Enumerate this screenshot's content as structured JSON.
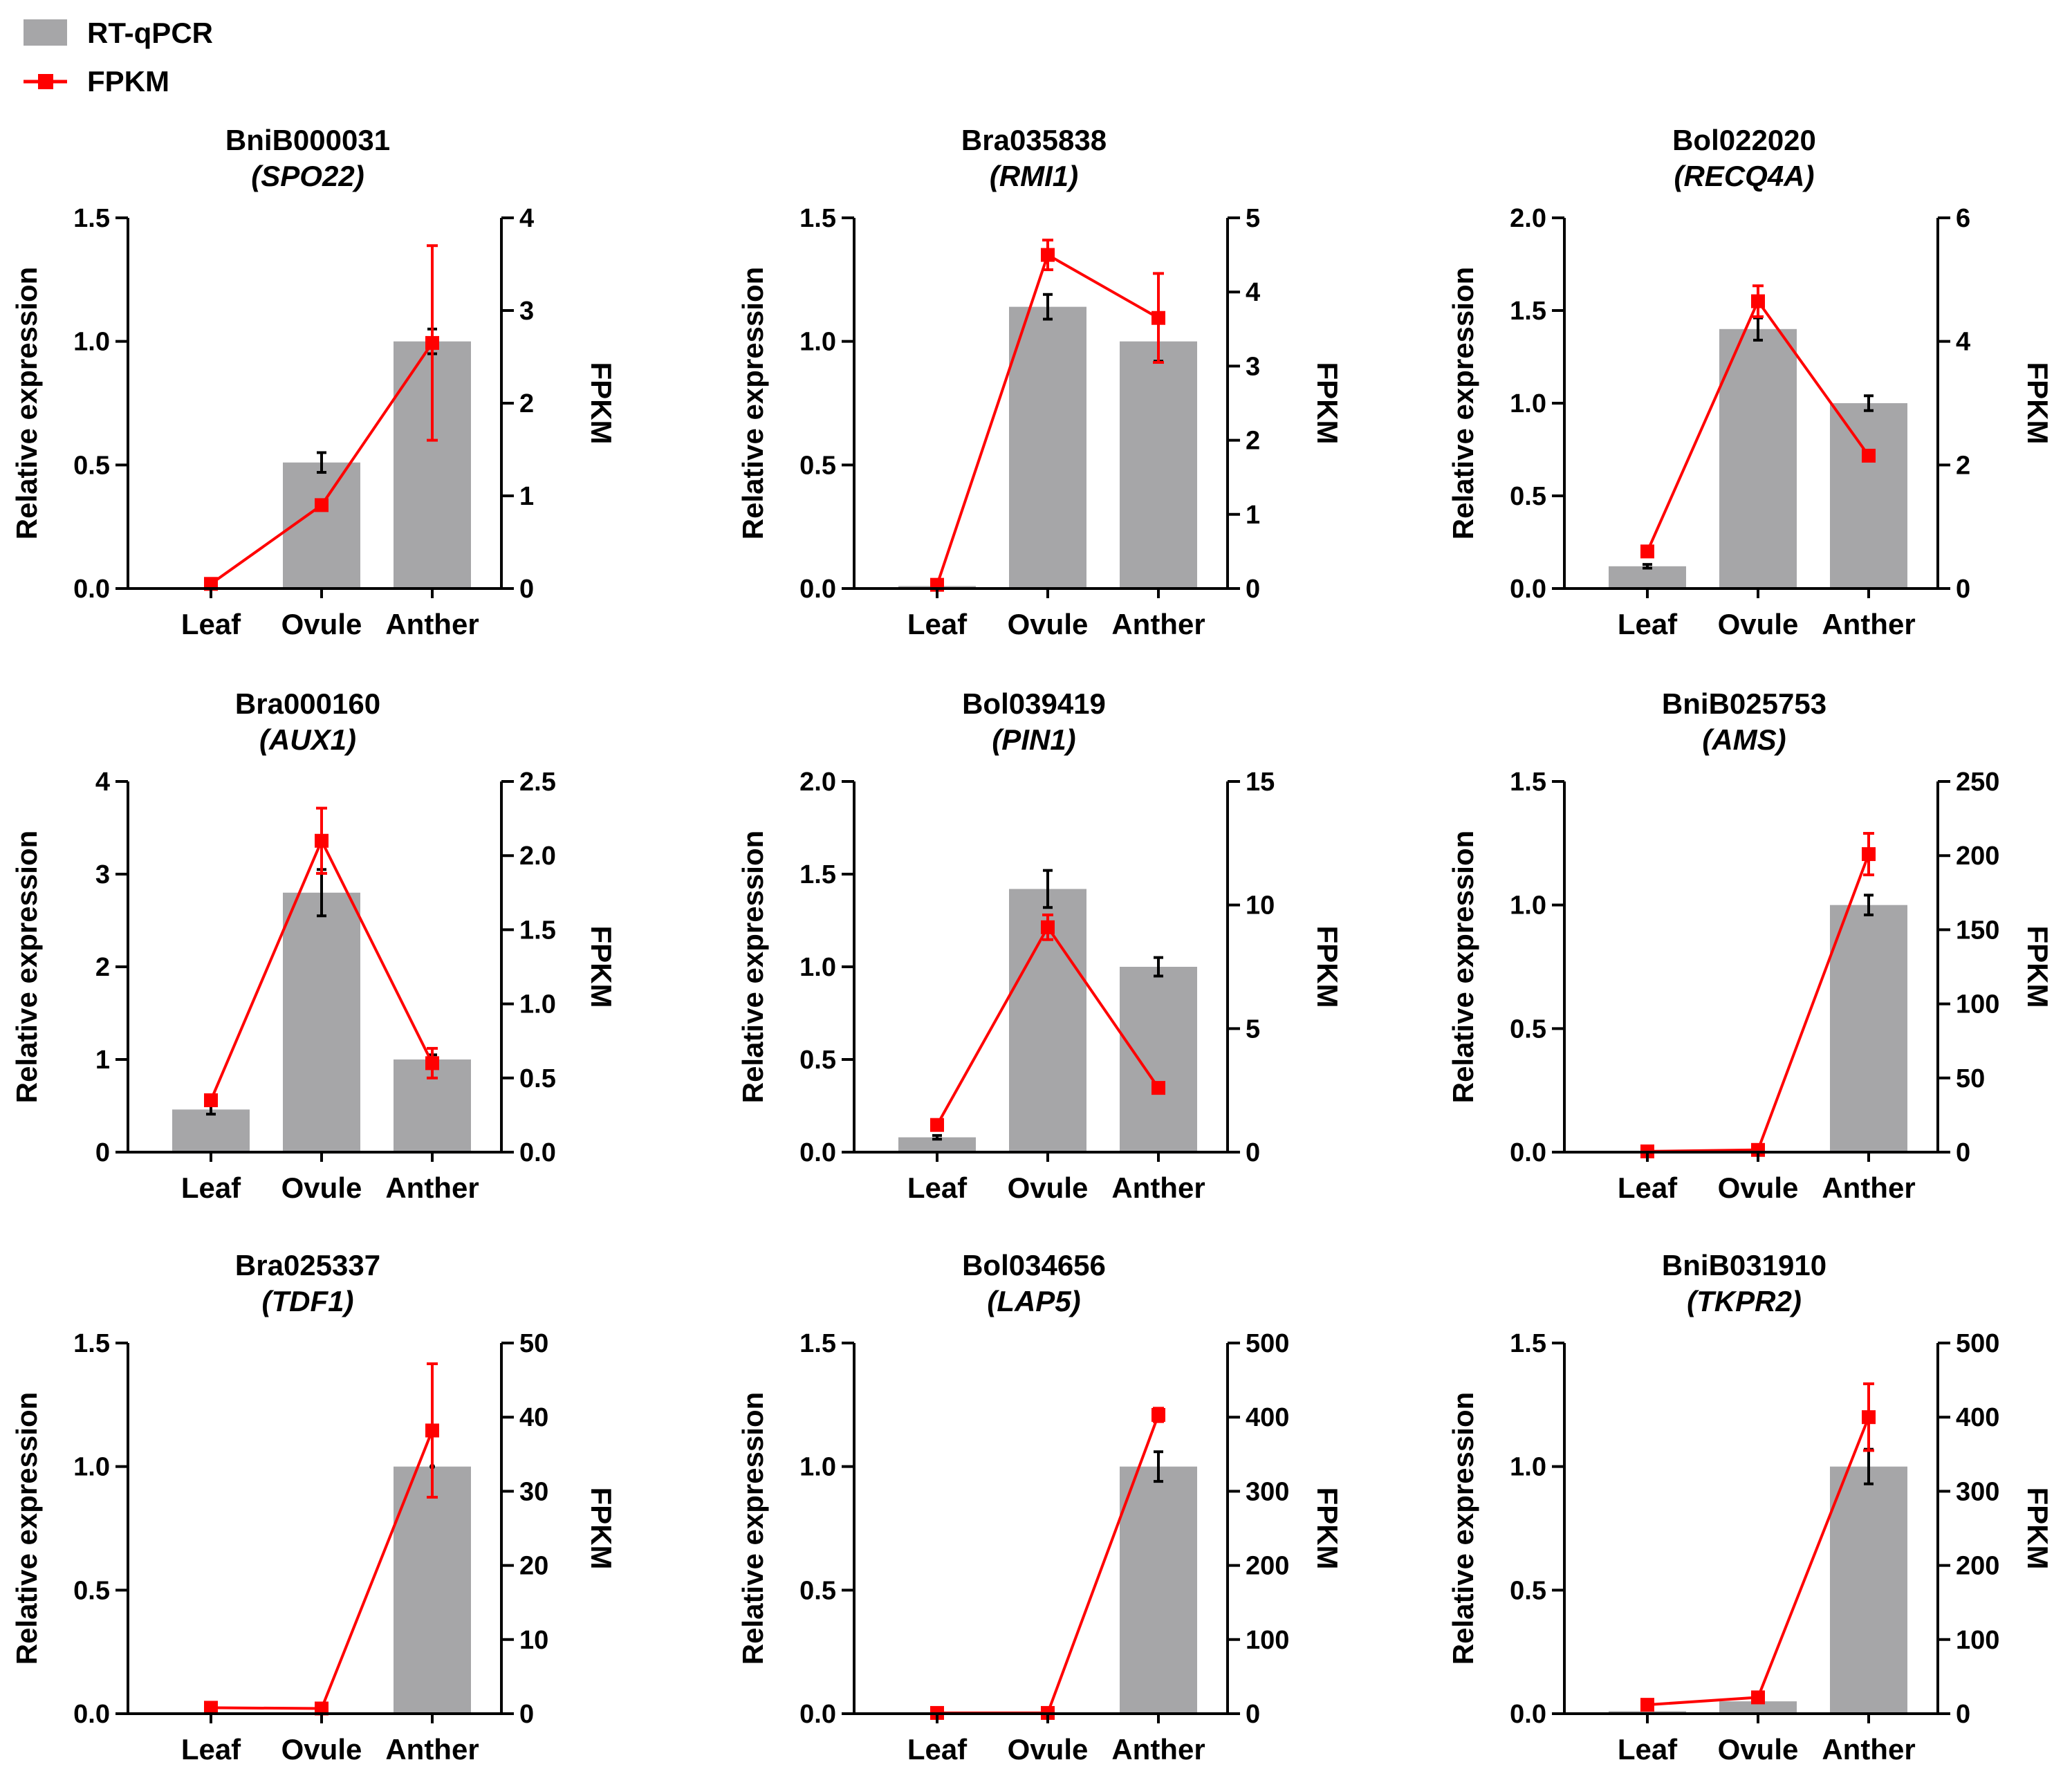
{
  "legend": {
    "bar_label": "RT-qPCR",
    "line_label": "FPKM",
    "bar_color": "#a6a6a8",
    "line_color": "#ff0000"
  },
  "chart_data": [
    {
      "type": "bar+line",
      "gene_id": "BniB000031",
      "gene_name": "(SPO22)",
      "categories": [
        "Leaf",
        "Ovule",
        "Anther"
      ],
      "ylabel": "Relative expression",
      "y2label": "FPKM",
      "ylim": [
        0,
        1.5
      ],
      "yticks": [
        "0.0",
        "0.5",
        "1.0",
        "1.5"
      ],
      "y2lim": [
        0,
        4
      ],
      "y2ticks": [
        "0",
        "1",
        "2",
        "3",
        "4"
      ],
      "series": [
        {
          "name": "RT-qPCR",
          "values": [
            0,
            0.51,
            1.0
          ],
          "errors": [
            0,
            0.04,
            0.05
          ]
        },
        {
          "name": "FPKM",
          "values": [
            0.05,
            0.9,
            2.65
          ],
          "errors": [
            0,
            0.05,
            1.05
          ]
        }
      ]
    },
    {
      "type": "bar+line",
      "gene_id": "Bra035838",
      "gene_name": "(RMI1)",
      "categories": [
        "Leaf",
        "Ovule",
        "Anther"
      ],
      "ylabel": "Relative expression",
      "y2label": "FPKM",
      "ylim": [
        0,
        1.5
      ],
      "yticks": [
        "0.0",
        "0.5",
        "1.0",
        "1.5"
      ],
      "y2lim": [
        0,
        5
      ],
      "y2ticks": [
        "0",
        "1",
        "2",
        "3",
        "4",
        "5"
      ],
      "series": [
        {
          "name": "RT-qPCR",
          "values": [
            0.01,
            1.14,
            1.0
          ],
          "errors": [
            0,
            0.05,
            0.08
          ]
        },
        {
          "name": "FPKM",
          "values": [
            0.05,
            4.5,
            3.65
          ],
          "errors": [
            0,
            0.2,
            0.6
          ]
        }
      ]
    },
    {
      "type": "bar+line",
      "gene_id": "Bol022020",
      "gene_name": "(RECQ4A)",
      "categories": [
        "Leaf",
        "Ovule",
        "Anther"
      ],
      "ylabel": "Relative expression",
      "y2label": "FPKM",
      "ylim": [
        0,
        2.0
      ],
      "yticks": [
        "0.0",
        "0.5",
        "1.0",
        "1.5",
        "2.0"
      ],
      "y2lim": [
        0,
        6
      ],
      "y2ticks": [
        "0",
        "2",
        "4",
        "6"
      ],
      "series": [
        {
          "name": "RT-qPCR",
          "values": [
            0.12,
            1.4,
            1.0
          ],
          "errors": [
            0.01,
            0.06,
            0.04
          ]
        },
        {
          "name": "FPKM",
          "values": [
            0.6,
            4.65,
            2.15
          ],
          "errors": [
            0.05,
            0.25,
            0.05
          ]
        }
      ]
    },
    {
      "type": "bar+line",
      "gene_id": "Bra000160",
      "gene_name": "(AUX1)",
      "categories": [
        "Leaf",
        "Ovule",
        "Anther"
      ],
      "ylabel": "Relative expression",
      "y2label": "FPKM",
      "ylim": [
        0,
        4
      ],
      "yticks": [
        "0",
        "1",
        "2",
        "3",
        "4"
      ],
      "y2lim": [
        0,
        2.5
      ],
      "y2ticks": [
        "0.0",
        "0.5",
        "1.0",
        "1.5",
        "2.0",
        "2.5"
      ],
      "series": [
        {
          "name": "RT-qPCR",
          "values": [
            0.46,
            2.8,
            1.0
          ],
          "errors": [
            0.05,
            0.25,
            0.05
          ]
        },
        {
          "name": "FPKM",
          "values": [
            0.35,
            2.1,
            0.6
          ],
          "errors": [
            0.03,
            0.22,
            0.1
          ]
        }
      ]
    },
    {
      "type": "bar+line",
      "gene_id": "Bol039419",
      "gene_name": "(PIN1)",
      "categories": [
        "Leaf",
        "Ovule",
        "Anther"
      ],
      "ylabel": "Relative expression",
      "y2label": "FPKM",
      "ylim": [
        0,
        2.0
      ],
      "yticks": [
        "0.0",
        "0.5",
        "1.0",
        "1.5",
        "2.0"
      ],
      "y2lim": [
        0,
        15
      ],
      "y2ticks": [
        "0",
        "5",
        "10",
        "15"
      ],
      "series": [
        {
          "name": "RT-qPCR",
          "values": [
            0.08,
            1.42,
            1.0
          ],
          "errors": [
            0.01,
            0.1,
            0.05
          ]
        },
        {
          "name": "FPKM",
          "values": [
            1.1,
            9.1,
            2.6
          ],
          "errors": [
            0.1,
            0.5,
            0.1
          ]
        }
      ]
    },
    {
      "type": "bar+line",
      "gene_id": "BniB025753",
      "gene_name": "(AMS)",
      "categories": [
        "Leaf",
        "Ovule",
        "Anther"
      ],
      "ylabel": "Relative expression",
      "y2label": "FPKM",
      "ylim": [
        0,
        1.5
      ],
      "yticks": [
        "0.0",
        "0.5",
        "1.0",
        "1.5"
      ],
      "y2lim": [
        0,
        250
      ],
      "y2ticks": [
        "0",
        "50",
        "100",
        "150",
        "200",
        "250"
      ],
      "series": [
        {
          "name": "RT-qPCR",
          "values": [
            0,
            0,
            1.0
          ],
          "errors": [
            0,
            0,
            0.04
          ]
        },
        {
          "name": "FPKM",
          "values": [
            0.5,
            1.5,
            201
          ],
          "errors": [
            0,
            0,
            14
          ]
        }
      ]
    },
    {
      "type": "bar+line",
      "gene_id": "Bra025337",
      "gene_name": "(TDF1)",
      "categories": [
        "Leaf",
        "Ovule",
        "Anther"
      ],
      "ylabel": "Relative expression",
      "y2label": "FPKM",
      "ylim": [
        0,
        1.5
      ],
      "yticks": [
        "0.0",
        "0.5",
        "1.0",
        "1.5"
      ],
      "y2lim": [
        0,
        50
      ],
      "y2ticks": [
        "0",
        "10",
        "20",
        "30",
        "40",
        "50"
      ],
      "series": [
        {
          "name": "RT-qPCR",
          "values": [
            0.005,
            0.005,
            1.0
          ],
          "errors": [
            0,
            0,
            0
          ]
        },
        {
          "name": "FPKM",
          "values": [
            0.8,
            0.7,
            38.2
          ],
          "errors": [
            0,
            0,
            9
          ]
        }
      ]
    },
    {
      "type": "bar+line",
      "gene_id": "Bol034656",
      "gene_name": "(LAP5)",
      "categories": [
        "Leaf",
        "Ovule",
        "Anther"
      ],
      "ylabel": "Relative expression",
      "y2label": "FPKM",
      "ylim": [
        0,
        1.5
      ],
      "yticks": [
        "0.0",
        "0.5",
        "1.0",
        "1.5"
      ],
      "y2lim": [
        0,
        500
      ],
      "y2ticks": [
        "0",
        "100",
        "200",
        "300",
        "400",
        "500"
      ],
      "series": [
        {
          "name": "RT-qPCR",
          "values": [
            0,
            0,
            1.0
          ],
          "errors": [
            0,
            0,
            0.06
          ]
        },
        {
          "name": "FPKM",
          "values": [
            1,
            1,
            403
          ],
          "errors": [
            0,
            0,
            9
          ]
        }
      ]
    },
    {
      "type": "bar+line",
      "gene_id": "BniB031910",
      "gene_name": "(TKPR2)",
      "categories": [
        "Leaf",
        "Ovule",
        "Anther"
      ],
      "ylabel": "Relative expression",
      "y2label": "FPKM",
      "ylim": [
        0,
        1.5
      ],
      "yticks": [
        "0.0",
        "0.5",
        "1.0",
        "1.5"
      ],
      "y2lim": [
        0,
        500
      ],
      "y2ticks": [
        "0",
        "100",
        "200",
        "300",
        "400",
        "500"
      ],
      "series": [
        {
          "name": "RT-qPCR",
          "values": [
            0.01,
            0.05,
            1.0
          ],
          "errors": [
            0,
            0,
            0.07
          ]
        },
        {
          "name": "FPKM",
          "values": [
            12,
            22,
            400
          ],
          "errors": [
            0,
            0,
            45
          ]
        }
      ]
    }
  ]
}
